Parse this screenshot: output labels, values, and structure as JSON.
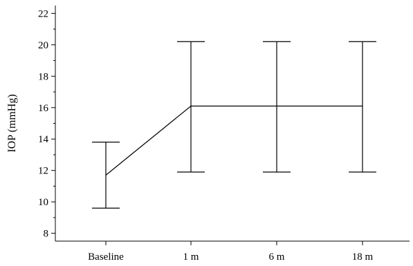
{
  "chart_data": {
    "type": "line",
    "title": "",
    "xlabel": "",
    "ylabel": "IOP (mmHg)",
    "categories": [
      "Baseline",
      "1 m",
      "6 m",
      "18 m"
    ],
    "series": [
      {
        "values": [
          11.7,
          16.1,
          16.1,
          16.1
        ],
        "error_low": [
          9.6,
          11.9,
          11.9,
          11.9
        ],
        "error_high": [
          13.8,
          20.2,
          20.2,
          20.2
        ]
      }
    ],
    "ylim": [
      7.5,
      22.5
    ],
    "yticks": [
      8,
      10,
      12,
      14,
      16,
      18,
      20,
      22
    ],
    "y_minor_ticks": [
      9,
      11,
      13,
      15,
      17,
      19,
      21
    ],
    "grid": false,
    "legend": "none",
    "colors": {
      "line": "#000000",
      "axis": "#000000",
      "background": "#ffffff"
    }
  }
}
